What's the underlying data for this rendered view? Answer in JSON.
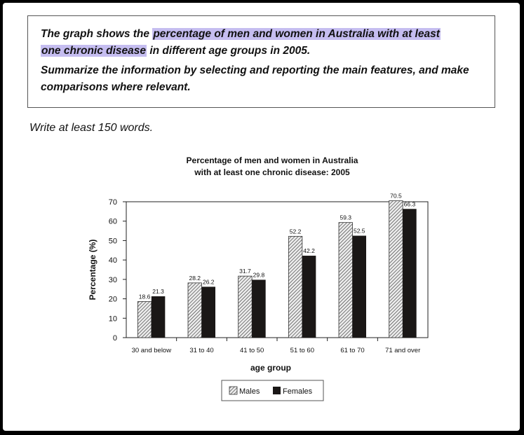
{
  "task": {
    "p1_prefix": "The graph shows the ",
    "p1_highlight_a": "percentage of men and women in Australia with at least",
    "p1_highlight_b": "one chronic disease",
    "p1_suffix": " in different age groups in 2005.",
    "p2": "Summarize the information by selecting and reporting the main features, and make comparisons where relevant.",
    "highlight_color": "#c5bdf0"
  },
  "instruction": "Write at least 150 words.",
  "chart_data": {
    "type": "bar",
    "title": [
      "Percentage of men and women in Australia",
      "with at least one chronic disease: 2005"
    ],
    "xlabel": "age group",
    "ylabel": "Percentage (%)",
    "ylim": [
      0,
      70
    ],
    "yticks": [
      "0",
      "10",
      "20",
      "30",
      "40",
      "50",
      "60",
      "70"
    ],
    "categories": [
      "30 and below",
      "31 to 40",
      "41 to 50",
      "51 to 60",
      "61 to 70",
      "71 and over"
    ],
    "series": [
      {
        "name": "Males",
        "values": [
          18.6,
          28.2,
          31.7,
          52.2,
          59.3,
          70.5
        ],
        "labels": [
          "18.6",
          "28.2",
          "31.7",
          "52.2",
          "59.3",
          "70.5"
        ],
        "pattern": "diagonal-hatch"
      },
      {
        "name": "Females",
        "values": [
          21.3,
          26.2,
          29.8,
          42.2,
          52.5,
          66.3
        ],
        "labels": [
          "21.3",
          "26.2",
          "29.8",
          "42.2",
          "52.5",
          "66.3"
        ],
        "color": "#1a1716"
      }
    ],
    "grid": false,
    "legend": "bottom"
  }
}
